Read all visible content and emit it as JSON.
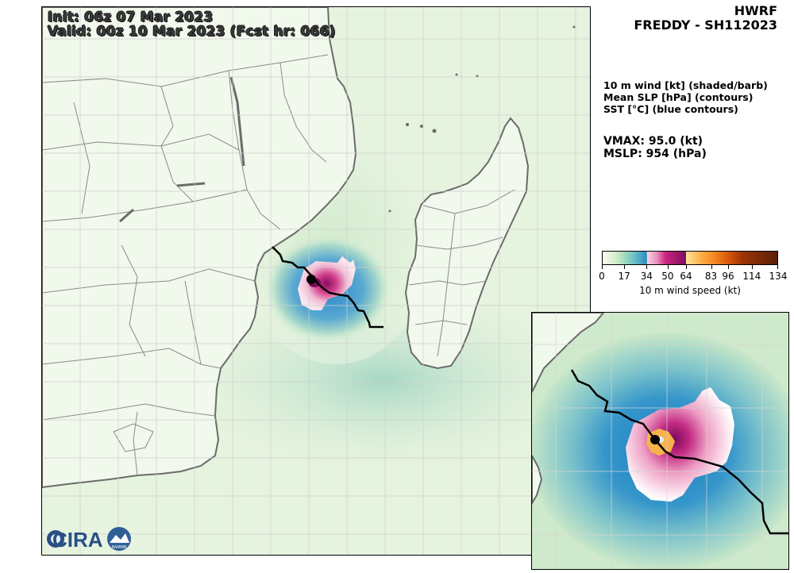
{
  "header": {
    "init": "Init:   06z 07 Mar 2023",
    "valid": "Valid: 00z 10 Mar 2023 (Fcst hr: 066)",
    "model": "HWRF",
    "storm": "FREDDY - SH112023"
  },
  "legend": {
    "line1": "10 m wind [kt] (shaded/barb)",
    "line2": "Mean SLP [hPa] (contours)",
    "line3": "SST [°C] (blue contours)"
  },
  "stats": {
    "vmax": "VMAX:  95.0 (kt)",
    "mslp": "MSLP:  954 (hPa)"
  },
  "colorbar": {
    "ticks": [
      "0",
      "17",
      "34",
      "50",
      "64",
      "83",
      "96",
      "114",
      "134"
    ],
    "tick_values": [
      0,
      17,
      34,
      50,
      64,
      83,
      96,
      114,
      134
    ],
    "max_value": 134,
    "label": "10 m wind speed (kt)"
  },
  "logos": {
    "cira": "CIRA",
    "rammb": "RAMMB"
  },
  "colors": {
    "land": "#f3f8ee",
    "ocean_low": "#dff0d6",
    "coast": "#6b6b6b",
    "track": "#000000",
    "cira_blue": "#2a4f84"
  }
}
